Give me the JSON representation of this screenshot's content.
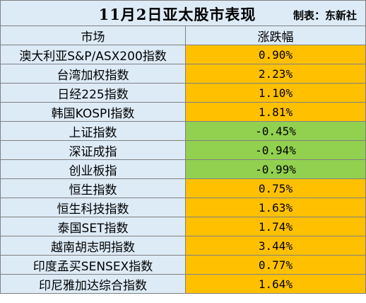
{
  "title": "11月2日亚太股市表现",
  "credit": "制表：东新社",
  "columns": {
    "market": "市场",
    "change": "涨跌幅"
  },
  "colors": {
    "header_bg": "#ddebf7",
    "up": "#ffc000",
    "down": "#92d050",
    "border": "#808080"
  },
  "rows": [
    {
      "market": "澳大利亚S&P/ASX200指数",
      "change": "0.90%",
      "direction": "up"
    },
    {
      "market": "台湾加权指数",
      "change": "2.23%",
      "direction": "up"
    },
    {
      "market": "日经225指数",
      "change": "1.10%",
      "direction": "up"
    },
    {
      "market": "韩国KOSPI指数",
      "change": "1.81%",
      "direction": "up"
    },
    {
      "market": "上证指数",
      "change": "-0.45%",
      "direction": "down"
    },
    {
      "market": "深证成指",
      "change": "-0.94%",
      "direction": "down"
    },
    {
      "market": "创业板指",
      "change": "-0.99%",
      "direction": "down"
    },
    {
      "market": "恒生指数",
      "change": "0.75%",
      "direction": "up"
    },
    {
      "market": "恒生科技指数",
      "change": "1.63%",
      "direction": "up"
    },
    {
      "market": "泰国SET指数",
      "change": "1.74%",
      "direction": "up"
    },
    {
      "market": "越南胡志明指数",
      "change": "3.44%",
      "direction": "up"
    },
    {
      "market": "印度孟买SENSEX指数",
      "change": "0.77%",
      "direction": "up"
    },
    {
      "market": "印尼雅加达综合指数",
      "change": "1.64%",
      "direction": "up"
    }
  ]
}
